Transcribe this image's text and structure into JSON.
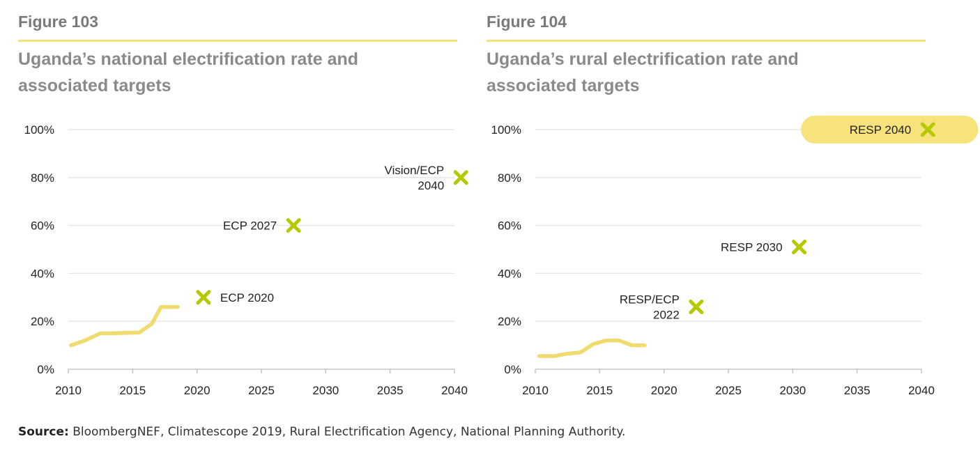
{
  "source": {
    "label": "Source:",
    "text": " BloombergNEF, Climatescope 2019, Rural Electrification Agency, National Planning Authority."
  },
  "colors": {
    "line": "#f0dc6e",
    "marker": "#b5c900",
    "grid": "#e4e4e4",
    "highlight": "#f7e27c"
  },
  "chart_data": [
    {
      "type": "line",
      "figure_label": "Figure 103",
      "title": "Uganda’s national electrification rate and\nassociated targets",
      "xlim": [
        2010,
        2040
      ],
      "ylim": [
        0,
        100
      ],
      "x_ticks": [
        2010,
        2015,
        2020,
        2025,
        2030,
        2035,
        2040
      ],
      "y_ticks": [
        0,
        20,
        40,
        60,
        80,
        100
      ],
      "y_tick_labels": [
        "0%",
        "20%",
        "40%",
        "60%",
        "80%",
        "100%"
      ],
      "grid": true,
      "series": [
        {
          "x": [
            2010.2,
            2011.3,
            2012.5,
            2013.5,
            2014.5,
            2015.5,
            2016.5,
            2017.2,
            2017.8,
            2018.5
          ],
          "y": [
            10,
            12,
            15,
            15,
            15.2,
            15.3,
            19,
            26,
            26,
            26
          ]
        }
      ],
      "targets": [
        {
          "label": "ECP 2020",
          "x": 2020.5,
          "y": 30,
          "label_side": "right"
        },
        {
          "label": "ECP 2027",
          "x": 2027.5,
          "y": 60,
          "label_side": "left"
        },
        {
          "label": "Vision/ECP\n2040",
          "x": 2040.5,
          "y": 80,
          "label_side": "left"
        }
      ]
    },
    {
      "type": "line",
      "figure_label": "Figure 104",
      "title": "Uganda’s rural electrification rate and\nassociated targets",
      "xlim": [
        2010,
        2040
      ],
      "ylim": [
        0,
        100
      ],
      "x_ticks": [
        2010,
        2015,
        2020,
        2025,
        2030,
        2035,
        2040
      ],
      "y_ticks": [
        0,
        20,
        40,
        60,
        80,
        100
      ],
      "y_tick_labels": [
        "0%",
        "20%",
        "40%",
        "60%",
        "80%",
        "100%"
      ],
      "grid": true,
      "series": [
        {
          "x": [
            2010.3,
            2011.5,
            2012.5,
            2013.5,
            2014.5,
            2015.5,
            2016.5,
            2017.5,
            2018.5
          ],
          "y": [
            5.5,
            5.5,
            6.5,
            7,
            10.5,
            12,
            12,
            10,
            10
          ]
        }
      ],
      "targets": [
        {
          "label": "RESP/ECP\n2022",
          "x": 2022.5,
          "y": 26,
          "label_side": "left"
        },
        {
          "label": "RESP 2030",
          "x": 2030.5,
          "y": 51,
          "label_side": "left"
        },
        {
          "label": "RESP 2040",
          "x": 2040.5,
          "y": 100,
          "label_side": "left",
          "highlighted": true
        }
      ]
    }
  ]
}
